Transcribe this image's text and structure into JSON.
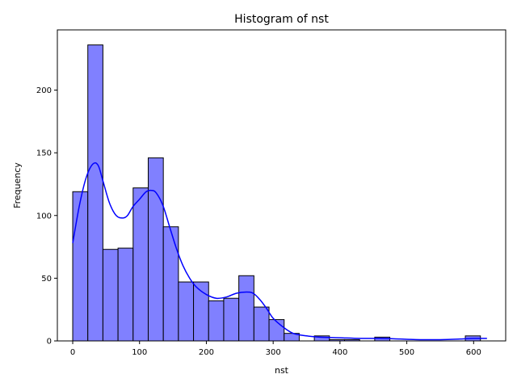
{
  "chart_data": {
    "type": "bar",
    "subtype": "histogram-with-kde",
    "title": "Histogram of nst",
    "xlabel": "nst",
    "ylabel": "Frequency",
    "xlim": [
      -23,
      648
    ],
    "ylim": [
      0,
      248
    ],
    "x_ticks": [
      0,
      100,
      200,
      300,
      400,
      500,
      600
    ],
    "y_ticks": [
      0,
      50,
      100,
      150,
      200
    ],
    "grid": false,
    "legend": "none",
    "bin_width": 22.6,
    "bins": [
      {
        "start": 0.0,
        "end": 22.6,
        "count": 119
      },
      {
        "start": 22.6,
        "end": 45.2,
        "count": 236
      },
      {
        "start": 45.2,
        "end": 67.8,
        "count": 73
      },
      {
        "start": 67.8,
        "end": 90.4,
        "count": 74
      },
      {
        "start": 90.4,
        "end": 113.0,
        "count": 122
      },
      {
        "start": 113.0,
        "end": 135.6,
        "count": 146
      },
      {
        "start": 135.6,
        "end": 158.2,
        "count": 91
      },
      {
        "start": 158.2,
        "end": 180.8,
        "count": 47
      },
      {
        "start": 180.8,
        "end": 203.4,
        "count": 47
      },
      {
        "start": 203.4,
        "end": 226.0,
        "count": 32
      },
      {
        "start": 226.0,
        "end": 248.6,
        "count": 34
      },
      {
        "start": 248.6,
        "end": 271.2,
        "count": 52
      },
      {
        "start": 271.2,
        "end": 293.8,
        "count": 27
      },
      {
        "start": 293.8,
        "end": 316.4,
        "count": 17
      },
      {
        "start": 316.4,
        "end": 339.0,
        "count": 6
      },
      {
        "start": 339.0,
        "end": 361.6,
        "count": 0
      },
      {
        "start": 361.6,
        "end": 384.2,
        "count": 4
      },
      {
        "start": 384.2,
        "end": 406.8,
        "count": 1
      },
      {
        "start": 406.8,
        "end": 429.4,
        "count": 1
      },
      {
        "start": 429.4,
        "end": 452.0,
        "count": 0
      },
      {
        "start": 452.0,
        "end": 474.6,
        "count": 3
      },
      {
        "start": 474.6,
        "end": 497.2,
        "count": 0
      },
      {
        "start": 497.2,
        "end": 519.8,
        "count": 0
      },
      {
        "start": 519.8,
        "end": 542.4,
        "count": 0
      },
      {
        "start": 542.4,
        "end": 565.0,
        "count": 0
      },
      {
        "start": 565.0,
        "end": 587.6,
        "count": 0
      },
      {
        "start": 587.6,
        "end": 610.2,
        "count": 4
      }
    ],
    "kde": {
      "x": [
        0,
        10,
        20,
        30,
        38,
        45,
        55,
        65,
        75,
        82,
        90,
        100,
        110,
        118,
        125,
        135,
        145,
        155,
        165,
        175,
        185,
        200,
        215,
        230,
        245,
        260,
        270,
        280,
        290,
        300,
        315,
        330,
        350,
        370,
        400,
        430,
        460,
        490,
        520,
        550,
        580,
        600,
        620
      ],
      "y": [
        78,
        108,
        130,
        141,
        140,
        128,
        110,
        100,
        98,
        100,
        107,
        113,
        119,
        120,
        118,
        108,
        91,
        74,
        60,
        50,
        43,
        37,
        34,
        35,
        38,
        39,
        38,
        33,
        26,
        18,
        11,
        6,
        4,
        3,
        2.5,
        2,
        2,
        1.5,
        1,
        1,
        1.5,
        2,
        2
      ]
    },
    "colors": {
      "bar_fill": "#8080ff",
      "bar_edge": "#000000",
      "kde_line": "#0000ff",
      "axis": "#000000"
    }
  }
}
